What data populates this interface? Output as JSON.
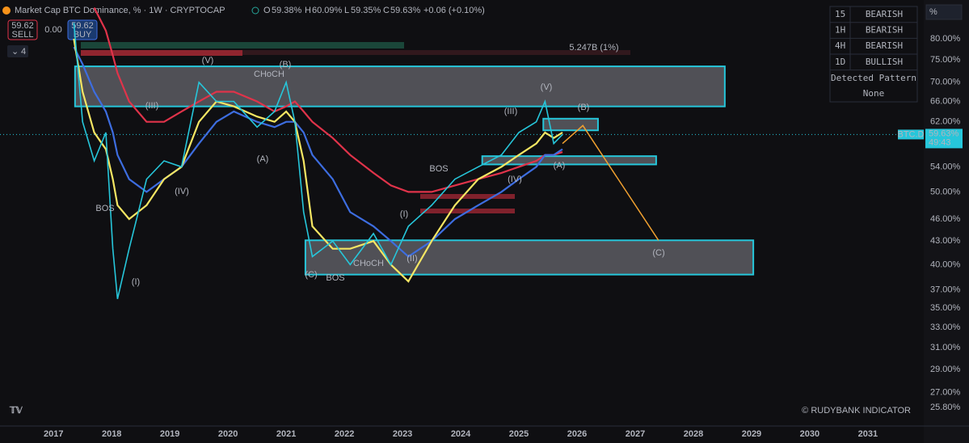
{
  "header": {
    "title": "Market Cap BTC Dominance, % · 1W · CRYPTOCAP",
    "o_key": "O",
    "o": "59.38%",
    "h_key": "H",
    "h": "60.09%",
    "l_key": "L",
    "l": "59.35%",
    "c_key": "C",
    "c": "59.63%",
    "change": "+0.06 (+0.10%)",
    "sell_price": "59.62",
    "sell": "SELL",
    "spread": "0.00",
    "buy_price": "59.62",
    "buy": "BUY",
    "indicators": "4",
    "scale_button": "%"
  },
  "signal_table": {
    "rows": [
      [
        "15",
        "BEARISH"
      ],
      [
        "1H",
        "BEARISH"
      ],
      [
        "4H",
        "BEARISH"
      ],
      [
        "1D",
        "BULLISH"
      ]
    ],
    "pattern_title": "Detected Pattern",
    "pattern": "None"
  },
  "watermark": "© RUDYBANK INDICATOR",
  "chart_data": {
    "type": "line",
    "log_scale": true,
    "grid": false,
    "x": [
      2017.35,
      2017.5,
      2017.7,
      2017.9,
      2018.02,
      2018.1,
      2018.3,
      2018.6,
      2018.9,
      2019.2,
      2019.5,
      2019.8,
      2020.1,
      2020.5,
      2020.8,
      2021.0,
      2021.15,
      2021.3,
      2021.45,
      2021.8,
      2022.1,
      2022.5,
      2022.8,
      2023.1,
      2023.5,
      2023.9,
      2024.3,
      2024.7,
      2025.0,
      2025.3,
      2025.45,
      2025.6,
      2025.75
    ],
    "series": [
      {
        "color": "#26c6da",
        "values": [
          84,
          62,
          55,
          60,
          42,
          36,
          42,
          52,
          55,
          54,
          70,
          66,
          66,
          61,
          64,
          70,
          62,
          47,
          41,
          43,
          40,
          44,
          40,
          45,
          48,
          52,
          54,
          56,
          60,
          62,
          66,
          58,
          59.63
        ]
      },
      {
        "color": "#f5e663",
        "values": [
          80,
          68,
          60,
          57,
          52,
          48,
          46,
          48,
          52,
          54,
          62,
          66,
          65,
          63,
          62,
          64,
          62,
          55,
          45,
          42,
          42,
          43,
          40,
          38,
          43,
          48,
          52,
          54,
          56,
          58,
          60,
          59,
          60
        ]
      },
      {
        "color": "#3d6de0",
        "values": [
          78,
          74,
          68,
          64,
          60,
          56,
          52,
          50,
          52,
          54,
          58,
          62,
          64,
          62,
          61,
          62,
          62,
          60,
          56,
          52,
          47,
          45,
          43,
          41,
          43,
          46,
          48,
          50,
          52,
          54,
          56,
          56,
          57
        ]
      },
      {
        "color": "#e0334a",
        "values": [
          null,
          null,
          88,
          82,
          76,
          72,
          66,
          62,
          62,
          64,
          66,
          68,
          68,
          66,
          64,
          65,
          66,
          64,
          62,
          59,
          56,
          53,
          51,
          50,
          50,
          51,
          52,
          53,
          54,
          55,
          56,
          56,
          56.5
        ]
      }
    ],
    "zones": [
      {
        "x": [
          2017.37,
          2028.54
        ],
        "y": [
          65,
          73.5
        ]
      },
      {
        "x": [
          2021.33,
          2029.03
        ],
        "y": [
          38.8,
          43.1
        ]
      },
      {
        "x": [
          2025.42,
          2026.36
        ],
        "y": [
          60.4,
          62.6
        ]
      },
      {
        "x": [
          2024.37,
          2027.36
        ],
        "y": [
          54.4,
          55.8
        ]
      }
    ],
    "zone_color": "#26c6da",
    "projection": {
      "color": "#f0a030",
      "x": [
        2025.75,
        2026.1,
        2027.4
      ],
      "values": [
        58,
        61.3,
        43.1
      ]
    },
    "last_price": {
      "value": 59.63,
      "label": "59.63%"
    },
    "symbol": "BTC.D",
    "countdown": "49:43",
    "annotations": [
      "(I)",
      "(III)",
      "(IV)",
      "(V)",
      "(A)",
      "(B)",
      "(C)",
      "(I)",
      "(II)",
      "(III)",
      "(IV)",
      "(V)",
      "(A)",
      "(B)",
      "(C)",
      "BOS",
      "BOS",
      "BOS",
      "CHoCH",
      "CHoCH",
      "5.247B (1%)"
    ],
    "xlim": [
      2016.08,
      2031.96
    ],
    "xticks": [
      2017,
      2018,
      2019,
      2020,
      2021,
      2022,
      2023,
      2024,
      2025,
      2026,
      2027,
      2028,
      2029,
      2030,
      2031
    ],
    "ylim": [
      24.5,
      90.1
    ],
    "yticks": [
      {
        "value": 80,
        "label": "80.00%"
      },
      {
        "value": 75,
        "label": "75.00%"
      },
      {
        "value": 70,
        "label": "70.00%"
      },
      {
        "value": 66,
        "label": "66.00%"
      },
      {
        "value": 62,
        "label": "62.00%"
      },
      {
        "value": 54,
        "label": "54.00%"
      },
      {
        "value": 50,
        "label": "50.00%"
      },
      {
        "value": 46,
        "label": "46.00%"
      },
      {
        "value": 43,
        "label": "43.00%"
      },
      {
        "value": 40,
        "label": "40.00%"
      },
      {
        "value": 37,
        "label": "37.00%"
      },
      {
        "value": 35,
        "label": "35.00%"
      },
      {
        "value": 33,
        "label": "33.00%"
      },
      {
        "value": 31,
        "label": "31.00%"
      },
      {
        "value": 29,
        "label": "29.00%"
      },
      {
        "value": 27,
        "label": "27.00%"
      },
      {
        "value": 25.8,
        "label": "25.80%"
      }
    ]
  }
}
